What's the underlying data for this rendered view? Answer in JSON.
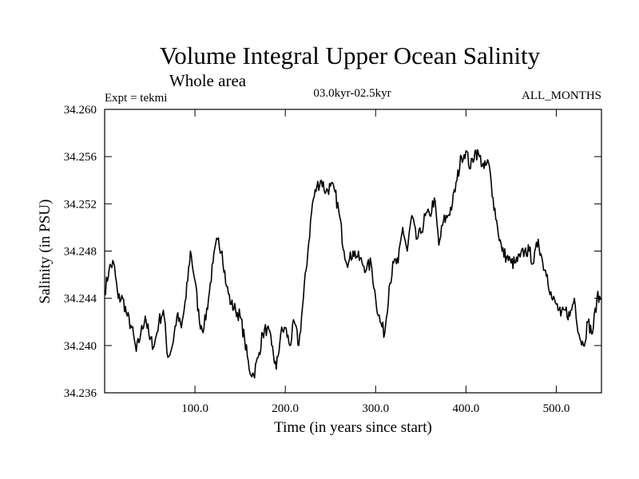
{
  "chart_data": {
    "type": "line",
    "title": "Volume Integral Upper Ocean Salinity",
    "subtitle": "Whole area",
    "annotations": {
      "left": "Expt = tekmi",
      "center": "03.0kyr-02.5kyr",
      "right": "ALL_MONTHS"
    },
    "xlabel": "Time (in years since start)",
    "ylabel": "Salinity (in PSU)",
    "xlim": [
      0,
      550
    ],
    "ylim": [
      34.236,
      34.26
    ],
    "xticks": [
      100,
      200,
      300,
      400,
      500
    ],
    "xtick_labels": [
      "100.0",
      "200.0",
      "300.0",
      "400.0",
      "500.0"
    ],
    "yticks": [
      34.236,
      34.24,
      34.244,
      34.248,
      34.252,
      34.256,
      34.26
    ],
    "ytick_labels": [
      "34.236",
      "34.240",
      "34.244",
      "34.248",
      "34.252",
      "34.256",
      "34.260"
    ],
    "grid": false,
    "series": [
      {
        "name": "Salinity",
        "x": [
          0,
          5,
          10,
          15,
          20,
          25,
          30,
          35,
          40,
          45,
          50,
          55,
          60,
          65,
          70,
          75,
          80,
          85,
          90,
          95,
          100,
          105,
          110,
          115,
          120,
          125,
          130,
          135,
          140,
          145,
          150,
          155,
          160,
          165,
          170,
          175,
          180,
          185,
          190,
          195,
          200,
          205,
          210,
          215,
          220,
          225,
          230,
          235,
          240,
          245,
          250,
          255,
          260,
          265,
          270,
          275,
          280,
          285,
          290,
          295,
          300,
          305,
          310,
          315,
          320,
          325,
          330,
          335,
          340,
          345,
          350,
          355,
          360,
          365,
          370,
          375,
          380,
          385,
          390,
          395,
          400,
          405,
          410,
          415,
          420,
          425,
          430,
          435,
          440,
          445,
          450,
          455,
          460,
          465,
          470,
          475,
          480,
          485,
          490,
          495,
          500,
          505,
          510,
          515,
          520,
          525,
          530,
          535,
          540,
          545,
          550
        ],
        "values": [
          34.2445,
          34.2465,
          34.247,
          34.244,
          34.244,
          34.2425,
          34.2415,
          34.2395,
          34.241,
          34.2425,
          34.2405,
          34.24,
          34.242,
          34.243,
          34.239,
          34.24,
          34.2425,
          34.2415,
          34.244,
          34.248,
          34.2455,
          34.242,
          34.2415,
          34.244,
          34.247,
          34.249,
          34.248,
          34.245,
          34.2435,
          34.243,
          34.2425,
          34.2405,
          34.238,
          34.2375,
          34.239,
          34.241,
          34.2415,
          34.24,
          34.238,
          34.241,
          34.2415,
          34.24,
          34.242,
          34.24,
          34.244,
          34.248,
          34.252,
          34.2535,
          34.254,
          34.253,
          34.2535,
          34.253,
          34.251,
          34.248,
          34.247,
          34.248,
          34.2475,
          34.247,
          34.2465,
          34.247,
          34.244,
          34.242,
          34.241,
          34.245,
          34.247,
          34.247,
          34.25,
          34.248,
          34.251,
          34.249,
          34.2495,
          34.251,
          34.251,
          34.2525,
          34.2485,
          34.2505,
          34.251,
          34.252,
          34.254,
          34.256,
          34.2565,
          34.255,
          34.2565,
          34.256,
          34.255,
          34.2555,
          34.2525,
          34.25,
          34.248,
          34.2475,
          34.247,
          34.247,
          34.2475,
          34.248,
          34.248,
          34.247,
          34.249,
          34.247,
          34.246,
          34.244,
          34.2435,
          34.2425,
          34.243,
          34.2425,
          34.244,
          34.241,
          34.24,
          34.242,
          34.241,
          34.244,
          34.244
        ]
      }
    ]
  }
}
